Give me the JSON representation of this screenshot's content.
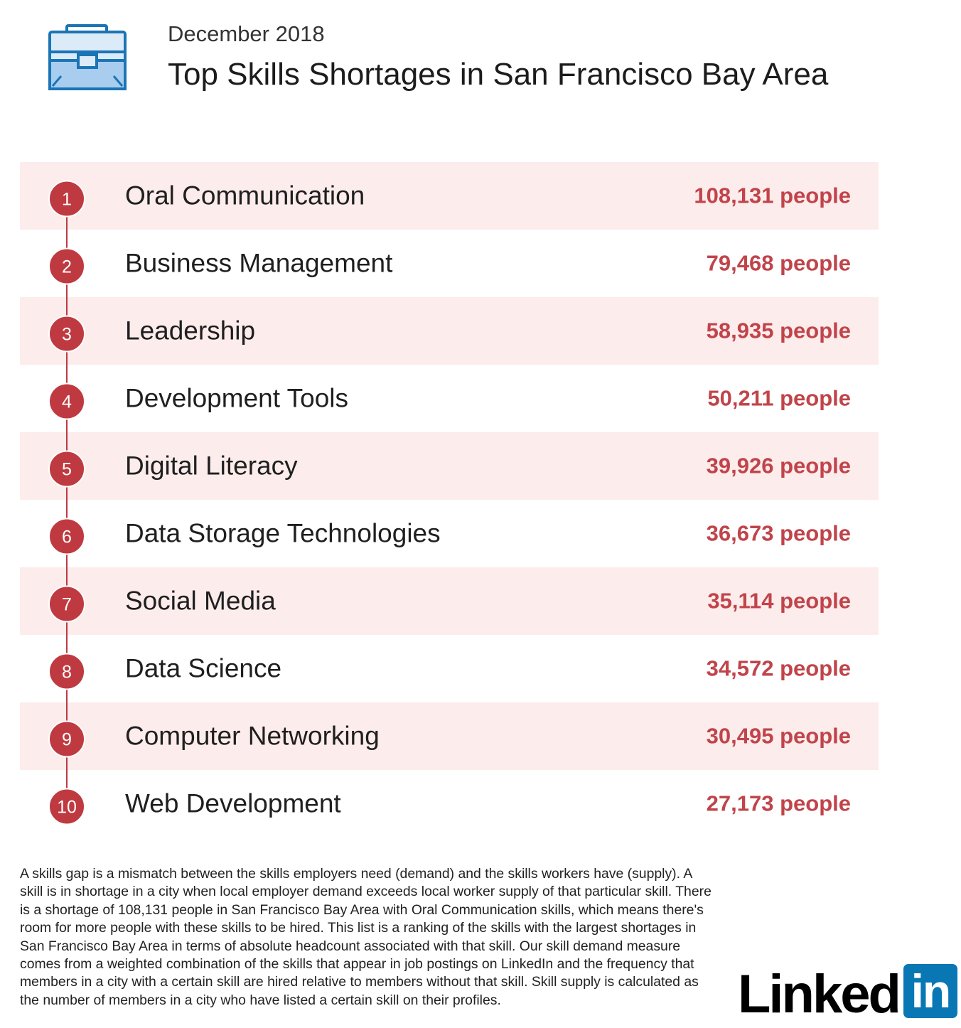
{
  "header": {
    "icon": "briefcase-icon",
    "date": "December 2018",
    "title": "Top Skills Shortages in San Francisco Bay Area"
  },
  "chart_data": {
    "type": "table",
    "unit": "people",
    "categories": [
      "Oral Communication",
      "Business Management",
      "Leadership",
      "Development Tools",
      "Digital Literacy",
      "Data Storage Technologies",
      "Social Media",
      "Data Science",
      "Computer Networking",
      "Web Development"
    ],
    "ranks": [
      "1",
      "2",
      "3",
      "4",
      "5",
      "6",
      "7",
      "8",
      "9",
      "10"
    ],
    "values": [
      108131,
      79468,
      58935,
      50211,
      39926,
      36673,
      35114,
      34572,
      30495,
      27173
    ],
    "value_labels": [
      "108,131",
      "79,468",
      "58,935",
      "50,211",
      "39,926",
      "36,673",
      "35,114",
      "34,572",
      "30,495",
      "27,173"
    ],
    "colors": {
      "stripe": "#fdecec",
      "rank_circle": "#bf3a40",
      "connector_line": "#bf3a40",
      "value_text": "#c0444a"
    }
  },
  "footnote": "A skills gap is a mismatch between the skills employers need (demand) and the skills workers have (supply). A skill is in shortage in a city when local employer demand exceeds local worker supply of that particular skill. There is a shortage of 108,131 people in San Francisco Bay Area with Oral Communication skills, which means there's room for more people with these skills to be hired. This list is a ranking of the skills with the largest shortages in San Francisco Bay Area in terms of absolute headcount associated with that skill. Our skill demand measure comes from a weighted combination of the skills that appear in job postings on LinkedIn and the frequency that members in a city with a certain skill are hired relative to members without that skill. Skill supply is calculated as the number of members in a city who have listed a certain skill on their profiles.",
  "logo": {
    "text": "Linked",
    "box_text": "in",
    "trademark": "TM",
    "brand_color": "#0a77b5"
  }
}
